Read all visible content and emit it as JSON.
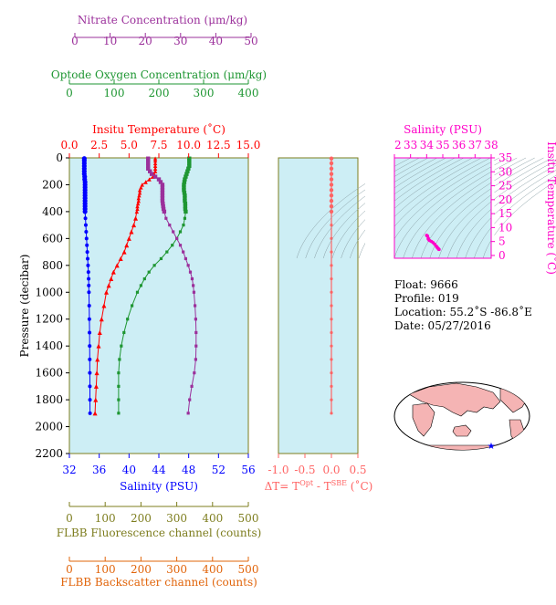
{
  "colors": {
    "nitrate": "#9b309b",
    "oxygen": "#1e9632",
    "temperature": "#ff0000",
    "salinity": "#0000ff",
    "fluorescence": "#7d7d1e",
    "backscatter": "#e1640a",
    "delta": "#ff6464",
    "ts": "#ff00c8",
    "panel_bg": "#cdeef5",
    "frame": "#7d7d1e"
  },
  "chart_data": [
    {
      "type": "line",
      "name": "profile-panel",
      "ylabel": "Pressure (decibar)",
      "ylim": [
        2200,
        0
      ],
      "yticks": [
        0,
        200,
        400,
        600,
        800,
        1000,
        1200,
        1400,
        1600,
        1800,
        2000,
        2200
      ],
      "pressure": [
        5,
        20,
        40,
        60,
        80,
        100,
        120,
        140,
        160,
        180,
        200,
        220,
        240,
        260,
        280,
        300,
        320,
        340,
        360,
        380,
        400,
        450,
        500,
        550,
        600,
        650,
        700,
        750,
        800,
        850,
        900,
        950,
        1000,
        1100,
        1200,
        1300,
        1400,
        1500,
        1600,
        1700,
        1800,
        1900
      ],
      "axes": {
        "temperature": {
          "label": "Insitu Temperature (˚C)",
          "range": [
            0,
            15
          ],
          "ticks": [
            "0.0",
            "2.5",
            "5.0",
            "7.5",
            "10.0",
            "12.5",
            "15.0"
          ]
        },
        "oxygen": {
          "label": "Optode Oxygen Concentration (μm/kg)",
          "range": [
            0,
            400
          ],
          "ticks": [
            "0",
            "100",
            "200",
            "300",
            "400"
          ]
        },
        "nitrate": {
          "label": "Nitrate Concentration (μm/kg)",
          "range": [
            0,
            50
          ],
          "ticks": [
            "0",
            "10",
            "20",
            "30",
            "40",
            "50"
          ]
        },
        "salinity": {
          "label": "Salinity (PSU)",
          "range": [
            32,
            56
          ],
          "ticks": [
            "32",
            "36",
            "40",
            "44",
            "48",
            "52",
            "56"
          ]
        },
        "fluorescence": {
          "label": "FLBB Fluorescence channel (counts)",
          "range": [
            0,
            500
          ],
          "ticks": [
            "0",
            "100",
            "200",
            "300",
            "400",
            "500"
          ]
        },
        "backscatter": {
          "label": "FLBB Backscatter channel (counts)",
          "range": [
            0,
            500
          ],
          "ticks": [
            "0",
            "100",
            "200",
            "300",
            "400",
            "500"
          ]
        }
      },
      "series": [
        {
          "key": "temperature",
          "values": [
            7.2,
            7.2,
            7.2,
            7.2,
            7.2,
            7.2,
            7.1,
            7.0,
            6.7,
            6.4,
            6.1,
            6.0,
            5.9,
            5.9,
            5.85,
            5.8,
            5.8,
            5.75,
            5.7,
            5.7,
            5.65,
            5.55,
            5.4,
            5.2,
            5.0,
            4.8,
            4.6,
            4.3,
            4.0,
            3.7,
            3.5,
            3.3,
            3.1,
            2.9,
            2.7,
            2.55,
            2.45,
            2.35,
            2.3,
            2.25,
            2.2,
            2.15
          ]
        },
        {
          "key": "oxygen",
          "values": [
            268,
            268,
            268,
            268,
            266,
            264,
            262,
            260,
            258,
            257,
            256,
            256,
            256,
            257,
            258,
            258,
            258,
            259,
            259,
            259,
            260,
            258,
            255,
            248,
            240,
            230,
            218,
            205,
            190,
            178,
            168,
            160,
            152,
            140,
            130,
            122,
            116,
            112,
            110,
            110,
            110,
            110
          ]
        },
        {
          "key": "nitrate",
          "values": [
            22,
            22,
            22,
            22,
            22,
            22.5,
            23,
            24,
            25,
            25.5,
            26,
            26,
            26,
            26,
            26,
            26,
            26,
            26.1,
            26.2,
            26.3,
            26.5,
            27,
            28,
            29,
            30,
            31,
            31.8,
            32.5,
            33.2,
            33.8,
            34.3,
            34.6,
            34.8,
            35.1,
            35.3,
            35.4,
            35.4,
            35.3,
            34.9,
            34.2,
            33.6,
            33.2
          ]
        },
        {
          "key": "salinity",
          "values": [
            34.0,
            34.0,
            34.0,
            34.0,
            34.0,
            34.0,
            34.0,
            34.05,
            34.05,
            34.1,
            34.1,
            34.1,
            34.1,
            34.1,
            34.1,
            34.1,
            34.1,
            34.1,
            34.1,
            34.1,
            34.1,
            34.15,
            34.2,
            34.25,
            34.3,
            34.35,
            34.4,
            34.45,
            34.5,
            34.55,
            34.58,
            34.6,
            34.62,
            34.66,
            34.68,
            34.7,
            34.72,
            34.73,
            34.74,
            34.75,
            34.76,
            34.77
          ]
        }
      ]
    },
    {
      "type": "line",
      "name": "delta-panel",
      "xlabel": "ΔT= T",
      "xlabel_sup1": "Opt",
      "xlabel_mid": " - T",
      "xlabel_sup2": "SBE",
      "xlabel_end": " (˚C)",
      "xlim": [
        -1.0,
        0.5
      ],
      "xticks": [
        "-1.0",
        "-0.5",
        "0.0",
        "0.5"
      ],
      "pressure": [
        5,
        40,
        80,
        120,
        160,
        200,
        240,
        280,
        320,
        360,
        400,
        500,
        600,
        700,
        800,
        900,
        1000,
        1100,
        1200,
        1300,
        1400,
        1500,
        1600,
        1700,
        1800,
        1900
      ],
      "values": [
        0,
        0,
        0,
        0,
        0,
        0,
        0,
        0,
        0,
        0,
        0,
        0,
        0,
        0,
        0,
        0,
        0,
        0,
        0,
        0,
        0,
        0,
        0,
        0,
        0,
        0
      ]
    },
    {
      "type": "scatter",
      "name": "ts-diagram",
      "xlabel": "Salinity (PSU)",
      "ylabel": "Insitu Temperature (˚C)",
      "xlim": [
        32,
        38
      ],
      "ylim": [
        -1,
        35
      ],
      "xticks": [
        "32",
        "33",
        "34",
        "35",
        "36",
        "37",
        "38"
      ],
      "yticks": [
        "0",
        "5",
        "10",
        "15",
        "20",
        "25",
        "30",
        "35"
      ],
      "points": [
        [
          34.0,
          7.2
        ],
        [
          34.05,
          7.0
        ],
        [
          34.1,
          6.2
        ],
        [
          34.1,
          5.9
        ],
        [
          34.15,
          5.5
        ],
        [
          34.2,
          5.3
        ],
        [
          34.3,
          5.0
        ],
        [
          34.4,
          4.6
        ],
        [
          34.5,
          4.0
        ],
        [
          34.6,
          3.3
        ],
        [
          34.65,
          2.9
        ],
        [
          34.7,
          2.6
        ],
        [
          34.73,
          2.35
        ],
        [
          34.75,
          2.25
        ],
        [
          34.77,
          2.15
        ]
      ]
    }
  ],
  "info": {
    "float": "Float:  9666",
    "profile": "Profile:  019",
    "location": "Location:  55.2˚S  -86.8˚E",
    "date": "Date:  05/27/2016"
  }
}
